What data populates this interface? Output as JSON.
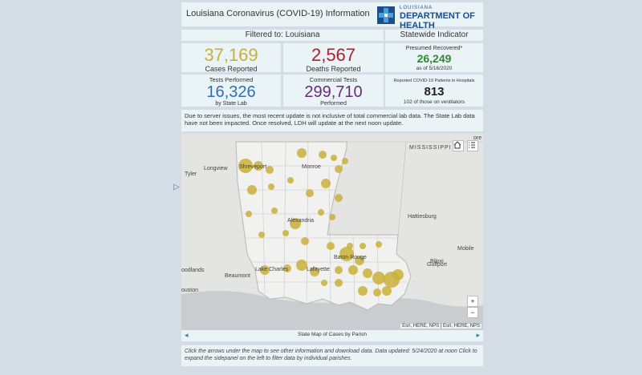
{
  "header": {
    "title": "Louisiana Coronavirus (COVID-19) Information",
    "logo_state": "LOUISIANA",
    "logo_dept": "DEPARTMENT OF HEALTH"
  },
  "filter": {
    "label": "Filtered to: Louisiana"
  },
  "statewide": {
    "label": "Statewide Indicator"
  },
  "cards": {
    "cases": {
      "value": "37,169",
      "label": "Cases Reported",
      "color": "#c9b03a"
    },
    "deaths": {
      "value": "2,567",
      "label": "Deaths Reported",
      "color": "#b0202a"
    },
    "recovered": {
      "title": "Presumed Recovered*",
      "value": "26,249",
      "date": "as of 5/16/2020",
      "color": "#2f8a2f"
    },
    "tests_state": {
      "title": "Tests Performed",
      "value": "16,326",
      "label": "by State Lab",
      "color": "#2d6fb0"
    },
    "tests_commercial": {
      "title": "Commercial Tests",
      "value": "299,710",
      "label": "Performed",
      "color": "#6a2b7a"
    },
    "hospital": {
      "title": "Reported COVID-19 Patients in Hospitals",
      "value": "813",
      "label": "102 of those on ventilators",
      "color": "#222222"
    }
  },
  "note": "Due to server issues, the most recent update is not inclusive of total commercial lab data. The State Lab data have not been impacted. Once resolved, LDH will update at the next noon update.",
  "map": {
    "labels": {
      "tyler": "Tyler",
      "longview": "Longview",
      "shreveport": "Shreveport",
      "monroe": "Monroe",
      "mississippi": "MISSISSIPPI",
      "alexandria": "Alexandria",
      "hattiesburg": "Hattiesburg",
      "woodlands": "oodlands",
      "beaumont": "Beaumont",
      "lake_charles": "Lake Charles",
      "lafayette": "Lafayette",
      "baton_rouge": "Baton Rouge",
      "biloxi": "Biloxi",
      "gulfport": "Gulfport",
      "mobile": "Mobile",
      "houston": "ouston",
      "corner": "ore"
    },
    "attribution": "Esri, HERE, NPS | Esri, HERE, NPS",
    "zoom_in": "+",
    "zoom_out": "−",
    "caption": "State Map of Cases by Parish",
    "bubble_color": "#c9b03a",
    "arrow_left": "◂",
    "arrow_right": "▸"
  },
  "footer": "Click the arrows under the map to see other information and download data. Data updated: 5/24/2020 at noon Click to expand the sidepanel on the left to filter data by individual parishes.",
  "sidehandle": "▷"
}
